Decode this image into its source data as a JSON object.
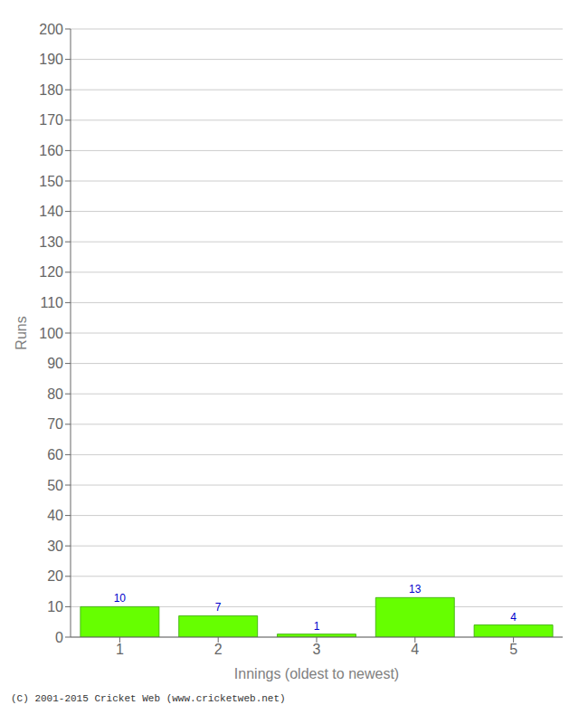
{
  "chart_data": {
    "type": "bar",
    "categories": [
      "1",
      "2",
      "3",
      "4",
      "5"
    ],
    "values": [
      10,
      7,
      1,
      13,
      4
    ],
    "color": "#66ff00",
    "xlabel": "Innings (oldest to newest)",
    "ylabel": "Runs",
    "ylim": [
      0,
      200
    ],
    "yticks": [
      0,
      10,
      20,
      30,
      40,
      50,
      60,
      70,
      80,
      90,
      100,
      110,
      120,
      130,
      140,
      150,
      160,
      170,
      180,
      190,
      200
    ],
    "grid": true,
    "data_labels": true,
    "annotations": [
      "(C) 2001-2015 Cricket Web (www.cricketweb.net)"
    ]
  }
}
